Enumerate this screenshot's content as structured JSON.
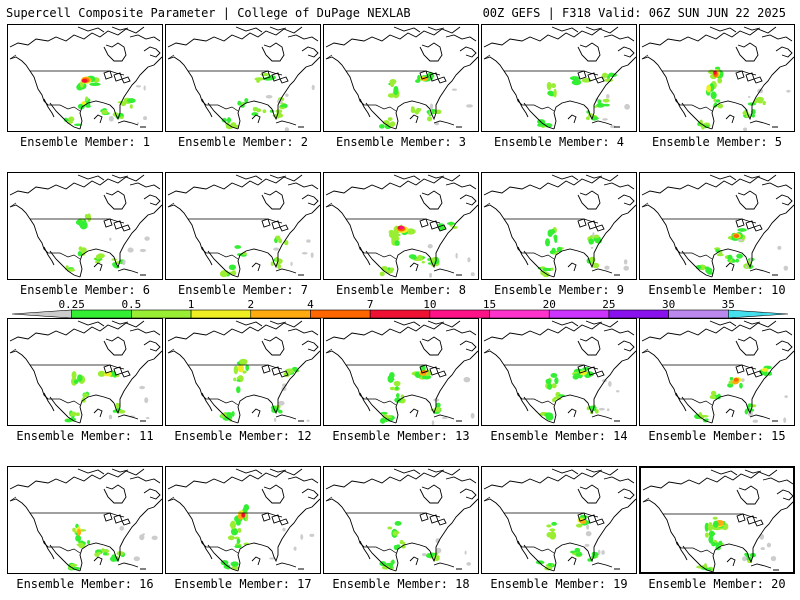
{
  "header": {
    "title": "Supercell Composite Parameter | College of DuPage NEXLAB",
    "run_info": "00Z GEFS | F318 Valid: 06Z SUN JUN 22 2025"
  },
  "colorbar": {
    "ticks": [
      "0.25",
      "0.5",
      "1",
      "2",
      "4",
      "7",
      "10",
      "15",
      "20",
      "25",
      "30",
      "35"
    ],
    "colors": [
      "#cccccc",
      "#33ee33",
      "#99ee33",
      "#eeee22",
      "#ffaa11",
      "#ff6600",
      "#ee1133",
      "#ff1188",
      "#ff33cc",
      "#cc33ff",
      "#8811ee",
      "#bb88ee",
      "#44e0ee"
    ]
  },
  "members": [
    {
      "label": "Ensemble Member: 1",
      "blobs": [
        [
          "central",
          6
        ],
        [
          "texas",
          3
        ],
        [
          "florida",
          2
        ],
        [
          "gulf",
          2
        ],
        [
          "mexico",
          2
        ],
        [
          "se",
          2
        ]
      ]
    },
    {
      "label": "Ensemble Member: 2",
      "blobs": [
        [
          "greatlakes",
          1
        ],
        [
          "mexico",
          2
        ],
        [
          "texas",
          1
        ],
        [
          "florida",
          2
        ],
        [
          "gulf",
          1
        ],
        [
          "se",
          1
        ]
      ]
    },
    {
      "label": "Ensemble Member: 3",
      "blobs": [
        [
          "greatlakes",
          4
        ],
        [
          "plains",
          2
        ],
        [
          "florida",
          2
        ],
        [
          "gulf",
          2
        ],
        [
          "mexico",
          1
        ]
      ]
    },
    {
      "label": "Ensemble Member: 4",
      "blobs": [
        [
          "greatlakes",
          2
        ],
        [
          "northeast",
          2
        ],
        [
          "plains",
          1
        ],
        [
          "florida",
          2
        ],
        [
          "mexico",
          1
        ],
        [
          "se",
          2
        ]
      ]
    },
    {
      "label": "Ensemble Member: 5",
      "blobs": [
        [
          "northplains",
          6
        ],
        [
          "plains",
          3
        ],
        [
          "texas",
          2
        ],
        [
          "florida",
          2
        ],
        [
          "mexico",
          2
        ],
        [
          "se",
          1
        ]
      ]
    },
    {
      "label": "Ensemble Member: 6",
      "blobs": [
        [
          "northplains",
          1
        ],
        [
          "texas",
          1
        ],
        [
          "florida",
          2
        ],
        [
          "mexico",
          2
        ],
        [
          "gulf",
          1
        ]
      ]
    },
    {
      "label": "Ensemble Member: 7",
      "blobs": [
        [
          "midatlantic",
          2
        ],
        [
          "texas",
          1
        ],
        [
          "florida",
          2
        ],
        [
          "mexico",
          2
        ]
      ]
    },
    {
      "label": "Ensemble Member: 8",
      "blobs": [
        [
          "central",
          7
        ],
        [
          "northeast",
          2
        ],
        [
          "plains",
          2
        ],
        [
          "florida",
          2
        ],
        [
          "mexico",
          2
        ],
        [
          "gulf",
          1
        ]
      ]
    },
    {
      "label": "Ensemble Member: 9",
      "blobs": [
        [
          "midatlantic",
          2
        ],
        [
          "plains",
          1
        ],
        [
          "texas",
          1
        ],
        [
          "florida",
          2
        ],
        [
          "mexico",
          2
        ]
      ]
    },
    {
      "label": "Ensemble Member: 10",
      "blobs": [
        [
          "ohiovalley",
          5
        ],
        [
          "texas",
          1
        ],
        [
          "florida",
          2
        ],
        [
          "mexico",
          2
        ],
        [
          "gulf",
          1
        ]
      ]
    },
    {
      "label": "Ensemble Member: 11",
      "blobs": [
        [
          "greatlakes",
          3
        ],
        [
          "plains",
          2
        ],
        [
          "texas",
          1
        ],
        [
          "florida",
          2
        ],
        [
          "mexico",
          2
        ]
      ]
    },
    {
      "label": "Ensemble Member: 12",
      "blobs": [
        [
          "northplains",
          3
        ],
        [
          "plains",
          2
        ],
        [
          "northeast",
          1
        ],
        [
          "florida",
          2
        ],
        [
          "mexico",
          1
        ]
      ]
    },
    {
      "label": "Ensemble Member: 13",
      "blobs": [
        [
          "greatlakes",
          5
        ],
        [
          "plains",
          2
        ],
        [
          "texas",
          2
        ],
        [
          "florida",
          2
        ],
        [
          "mexico",
          2
        ]
      ]
    },
    {
      "label": "Ensemble Member: 14",
      "blobs": [
        [
          "greatlakes",
          3
        ],
        [
          "plains",
          2
        ],
        [
          "texas",
          2
        ],
        [
          "florida",
          2
        ],
        [
          "mexico",
          2
        ]
      ]
    },
    {
      "label": "Ensemble Member: 15",
      "blobs": [
        [
          "ohiovalley",
          5
        ],
        [
          "northeast",
          3
        ],
        [
          "texas",
          2
        ],
        [
          "florida",
          2
        ],
        [
          "mexico",
          2
        ]
      ]
    },
    {
      "label": "Ensemble Member: 16",
      "blobs": [
        [
          "plains",
          4
        ],
        [
          "texas",
          2
        ],
        [
          "florida",
          2
        ],
        [
          "mexico",
          2
        ],
        [
          "gulf",
          1
        ]
      ]
    },
    {
      "label": "Ensemble Member: 17",
      "blobs": [
        [
          "northplains",
          6
        ],
        [
          "plains",
          2
        ],
        [
          "texas",
          2
        ],
        [
          "mexico",
          2
        ]
      ]
    },
    {
      "label": "Ensemble Member: 18",
      "blobs": [
        [
          "plains",
          1
        ],
        [
          "texas",
          1
        ],
        [
          "florida",
          1
        ],
        [
          "mexico",
          1
        ]
      ]
    },
    {
      "label": "Ensemble Member: 19",
      "blobs": [
        [
          "greatlakes",
          4
        ],
        [
          "plains",
          2
        ],
        [
          "florida",
          2
        ],
        [
          "mexico",
          2
        ],
        [
          "gulf",
          1
        ]
      ]
    },
    {
      "label": "Ensemble Member: 20",
      "blobs": [
        [
          "central",
          4
        ],
        [
          "plains",
          2
        ],
        [
          "texas",
          2
        ],
        [
          "florida",
          2
        ],
        [
          "mexico",
          2
        ]
      ]
    }
  ]
}
